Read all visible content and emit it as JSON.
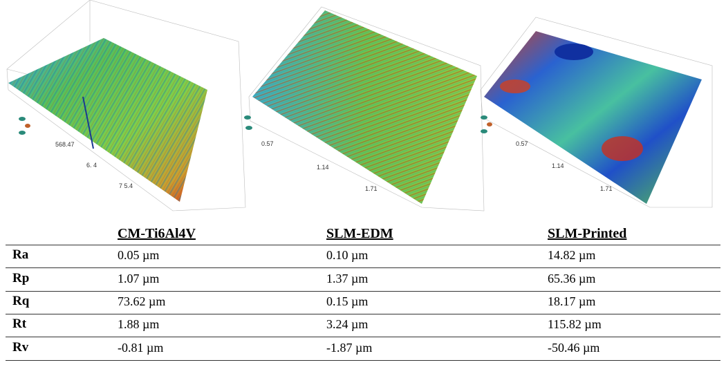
{
  "images": [
    {
      "axis_labels": [
        "568.47",
        "6. 4",
        "7 5.4"
      ]
    },
    {
      "axis_labels": [
        "0.57",
        "1.14",
        "1.71"
      ]
    },
    {
      "axis_labels": [
        "0.57",
        "1.14",
        "1.71"
      ]
    }
  ],
  "table": {
    "columns": [
      "CM-Ti6Al4V",
      "SLM-EDM",
      "SLM-Printed"
    ],
    "rows": [
      {
        "label": "Ra",
        "cells": [
          "0.05 µm",
          "0.10 µm",
          "14.82 µm"
        ]
      },
      {
        "label": "Rp",
        "cells": [
          "1.07 µm",
          "1.37 µm",
          "65.36 µm"
        ]
      },
      {
        "label": "Rq",
        "cells": [
          "73.62 µm",
          "0.15 µm",
          "18.17 µm"
        ]
      },
      {
        "label": "Rt",
        "cells": [
          "1.88 µm",
          "3.24 µm",
          "115.82 µm"
        ]
      },
      {
        "label": "Rv",
        "cells": [
          "-0.81 µm",
          "-1.87 µm",
          "-50.46 µm"
        ]
      }
    ]
  }
}
